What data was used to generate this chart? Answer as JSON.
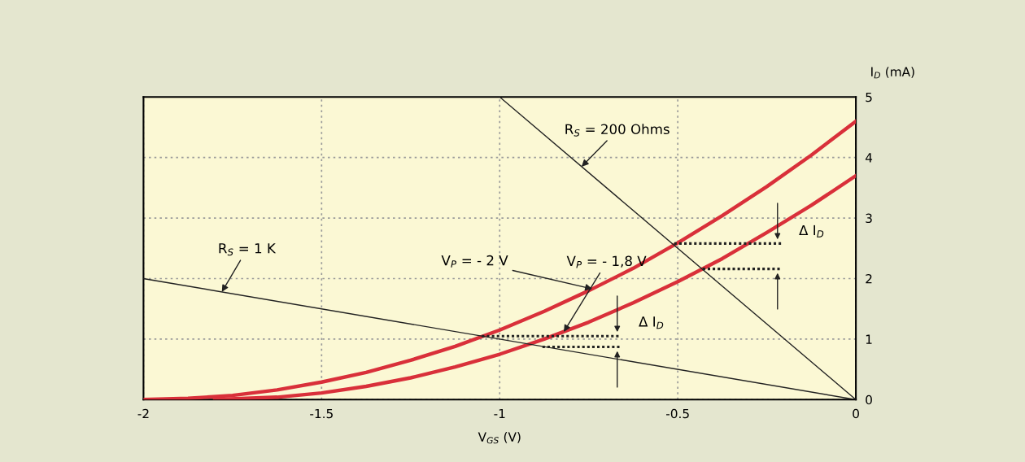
{
  "chart_data": {
    "type": "line",
    "xlabel": "V$_{GS}$ (V)",
    "ylabel": "I$_{D}$ (mA)",
    "xlim": [
      -2,
      0
    ],
    "ylim": [
      0,
      5
    ],
    "xticks": [
      -2,
      -1.5,
      -1,
      -0.5,
      0
    ],
    "yticks": [
      0,
      1,
      2,
      3,
      4,
      5
    ],
    "grid": true,
    "legend": false,
    "marker": "none",
    "series": [
      {
        "color": "#d9303a",
        "x": [
          -2,
          -1.875,
          -1.75,
          -1.625,
          -1.5,
          -1.375,
          -1.25,
          -1.125,
          -1,
          -0.875,
          -0.75,
          -0.625,
          -0.5,
          -0.375,
          -0.25,
          -0.125,
          0
        ],
        "values": [
          0,
          0.02,
          0.07,
          0.16,
          0.29,
          0.45,
          0.65,
          0.88,
          1.15,
          1.46,
          1.8,
          2.17,
          2.59,
          3.04,
          3.52,
          4.04,
          4.6
        ]
      },
      {
        "color": "#d9303a",
        "x": [
          -1.8,
          -1.625,
          -1.5,
          -1.375,
          -1.25,
          -1.125,
          -1,
          -0.875,
          -0.75,
          -0.625,
          -0.5,
          -0.375,
          -0.25,
          -0.125,
          0
        ],
        "values": [
          0,
          0.04,
          0.11,
          0.22,
          0.36,
          0.54,
          0.75,
          1.0,
          1.28,
          1.6,
          1.95,
          2.33,
          2.76,
          3.21,
          3.7
        ]
      },
      {
        "color": "#222222",
        "x": [
          -2,
          0
        ],
        "values": [
          2,
          0
        ]
      },
      {
        "color": "#222222",
        "x": [
          -1,
          0
        ],
        "values": [
          5,
          0
        ]
      },
      {
        "color": "#222222",
        "line_style": "dotted",
        "x": [
          -0.51,
          -0.21
        ],
        "values": [
          2.58,
          2.58
        ]
      },
      {
        "color": "#222222",
        "line_style": "dotted",
        "x": [
          -0.43,
          -0.21
        ],
        "values": [
          2.16,
          2.16
        ]
      },
      {
        "color": "#222222",
        "line_style": "dotted",
        "x": [
          -1.05,
          -0.66
        ],
        "values": [
          1.05,
          1.05
        ]
      },
      {
        "color": "#222222",
        "line_style": "dotted",
        "x": [
          -0.88,
          -0.66
        ],
        "values": [
          0.87,
          0.87
        ]
      }
    ],
    "annotations": [
      {
        "text": "R$_{S}$ = 200 Ohms",
        "x": -0.77,
        "y": 3.85
      },
      {
        "text": "R$_{S}$ = 1 K",
        "x": -1.78,
        "y": 1.78
      },
      {
        "text": "V$_{P}$ = - 2 V",
        "x": -0.74,
        "y": 1.83
      },
      {
        "text": "V$_{P}$ = - 1,8 V",
        "x": -0.82,
        "y": 1.12
      },
      {
        "text": "Δ I$_{D}$",
        "x": -0.67,
        "y": 1.05
      },
      {
        "text": "Δ I$_{D}$",
        "x": -0.21,
        "y": 2.58
      }
    ]
  }
}
